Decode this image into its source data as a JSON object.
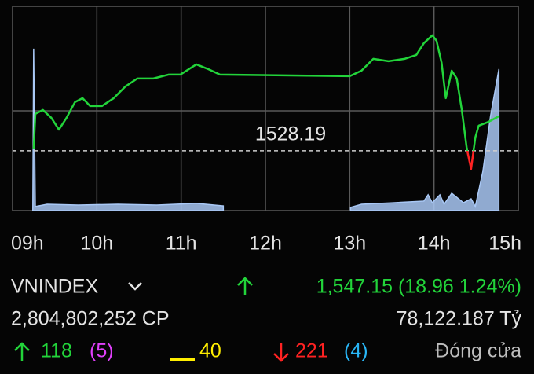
{
  "chart_data": {
    "type": "line",
    "reference": 1528.19,
    "x": [
      9.25,
      9.27,
      9.36,
      9.46,
      9.55,
      9.64,
      9.74,
      9.83,
      9.92,
      10.06,
      10.2,
      10.34,
      10.48,
      10.67,
      10.85,
      10.99,
      11.18,
      11.32,
      11.46,
      13.0,
      13.14,
      13.28,
      13.46,
      13.65,
      13.79,
      13.88,
      13.98,
      14.03,
      14.09,
      14.14,
      14.21,
      14.27,
      14.33,
      14.39,
      14.44,
      14.49,
      14.53,
      14.65,
      14.77
    ],
    "series": [
      {
        "color": "#22d43a",
        "down_color": "#ff2222",
        "values": [
          1529.05,
          1548.45,
          1550.6,
          1546.29,
          1539.83,
          1546.29,
          1554.91,
          1557.07,
          1552.76,
          1552.76,
          1557.07,
          1563.53,
          1567.85,
          1567.85,
          1570.0,
          1570.0,
          1575.6,
          1573.02,
          1570.0,
          1569.14,
          1572.16,
          1578.62,
          1577.33,
          1578.62,
          1580.78,
          1587.24,
          1591.55,
          1588.53,
          1576.47,
          1557.07,
          1572.16,
          1567.85,
          1550.6,
          1529.05,
          1518.28,
          1535.52,
          1541.98,
          1544.14,
          1547.16
        ]
      }
    ],
    "volume": {
      "type": "area",
      "axis": "y2",
      "color": "#a9c8f5",
      "x": [
        9.24,
        9.25,
        9.27,
        9.41,
        9.78,
        10.25,
        10.71,
        11.18,
        11.5,
        12.25,
        13.01,
        13.14,
        13.51,
        13.88,
        13.93,
        13.98,
        14.07,
        14.12,
        14.21,
        14.35,
        14.44,
        14.49,
        14.58,
        14.67,
        14.77
      ],
      "values": [
        0,
        76.9,
        1.9,
        3.0,
        2.6,
        3.0,
        2.6,
        3.4,
        2.2,
        null,
        1.5,
        3.0,
        3.7,
        4.5,
        7.5,
        3.7,
        7.5,
        3.0,
        8.2,
        3.7,
        5.6,
        1.9,
        18.7,
        44.8,
        67.2
      ]
    },
    "xlim": [
      9,
      15
    ],
    "ylim": [
      1495.4,
      1610.9
    ],
    "y2lim": [
      0,
      100
    ],
    "xticks": [
      {
        "value": 9,
        "label": "09h"
      },
      {
        "value": 10,
        "label": "10h"
      },
      {
        "value": 11,
        "label": "11h"
      },
      {
        "value": 12,
        "label": "12h"
      },
      {
        "value": 13,
        "label": "13h"
      },
      {
        "value": 14,
        "label": "14h"
      },
      {
        "value": 15,
        "label": "15h"
      }
    ],
    "grid": true
  },
  "summary": {
    "index": "VNINDEX",
    "change": "1,547.15 (18.96 1.24%)",
    "volume": "2,804,802,252 CP",
    "turnover": "78,122.187 Tỷ",
    "advances": "118",
    "ceiling": "(5)",
    "unchanged": "40",
    "declines": "221",
    "floor": "(4)",
    "status": "Đóng cửa"
  }
}
